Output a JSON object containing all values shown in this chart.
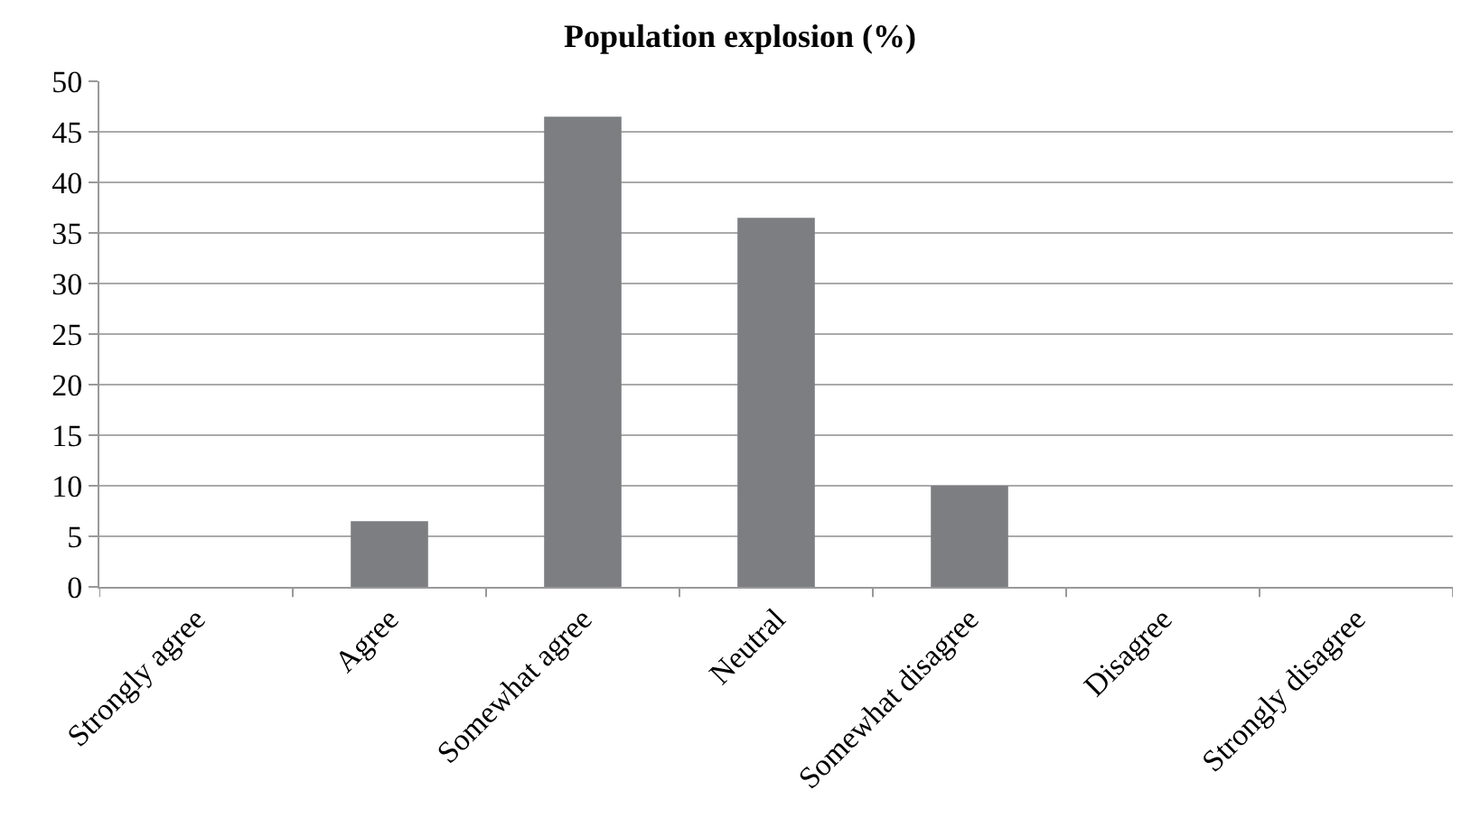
{
  "chart_data": {
    "type": "bar",
    "title": "Population explosion (%)",
    "categories": [
      "Strongly agree",
      "Agree",
      "Somewhat agree",
      "Neutral",
      "Somewhat disagree",
      "Disagree",
      "Strongly disagree"
    ],
    "values": [
      0,
      6.5,
      46.5,
      36.5,
      10,
      0,
      0
    ],
    "color": "#7d7e82",
    "ylim": [
      0,
      50
    ],
    "yticks": [
      0,
      5,
      10,
      15,
      20,
      25,
      30,
      35,
      40,
      45,
      50
    ],
    "grid": "y"
  }
}
